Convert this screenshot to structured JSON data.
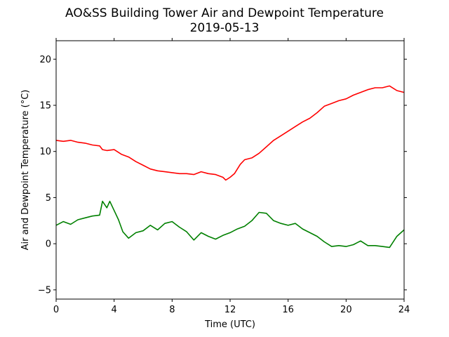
{
  "chart_data": {
    "type": "line",
    "title": "AO&SS Building Tower Air and Dewpoint Temperature",
    "subtitle": "2019-05-13",
    "xlabel": "Time (UTC)",
    "ylabel": "Air and Dewpoint Temperature (°C)",
    "xlim": [
      0,
      24
    ],
    "ylim": [
      -6,
      22
    ],
    "xticks": [
      0,
      4,
      8,
      12,
      16,
      20,
      24
    ],
    "yticks": [
      -5,
      0,
      5,
      10,
      15,
      20
    ],
    "grid": false,
    "series": [
      {
        "color": "#ff0000",
        "x": [
          0,
          0.5,
          1,
          1.5,
          2,
          2.5,
          3,
          3.2,
          3.5,
          4,
          4.5,
          5,
          5.5,
          6,
          6.5,
          7,
          7.5,
          8,
          8.5,
          9,
          9.5,
          10,
          10.5,
          11,
          11.5,
          11.7,
          12,
          12.3,
          12.7,
          13,
          13.5,
          14,
          14.5,
          15,
          15.5,
          16,
          16.5,
          17,
          17.5,
          18,
          18.5,
          19,
          19.5,
          20,
          20.5,
          21,
          21.5,
          22,
          22.5,
          23,
          23.5,
          24
        ],
        "y": [
          11.2,
          11.1,
          11.2,
          11.0,
          10.9,
          10.7,
          10.6,
          10.2,
          10.1,
          10.2,
          9.7,
          9.4,
          8.9,
          8.5,
          8.1,
          7.9,
          7.8,
          7.7,
          7.6,
          7.6,
          7.5,
          7.8,
          7.6,
          7.5,
          7.2,
          6.9,
          7.2,
          7.6,
          8.6,
          9.1,
          9.3,
          9.8,
          10.5,
          11.2,
          11.7,
          12.2,
          12.7,
          13.2,
          13.6,
          14.2,
          14.9,
          15.2,
          15.5,
          15.7,
          16.1,
          16.4,
          16.7,
          16.9,
          16.9,
          17.1,
          16.6,
          16.4
        ]
      },
      {
        "color": "#008000",
        "x": [
          0,
          0.5,
          1,
          1.5,
          2,
          2.5,
          3,
          3.2,
          3.5,
          3.7,
          4,
          4.3,
          4.6,
          5,
          5.5,
          6,
          6.5,
          7,
          7.5,
          8,
          8.5,
          9,
          9.5,
          10,
          10.5,
          11,
          11.5,
          12,
          12.5,
          13,
          13.5,
          14,
          14.5,
          15,
          15.5,
          16,
          16.5,
          17,
          17.5,
          18,
          18.5,
          19,
          19.5,
          20,
          20.5,
          21,
          21.5,
          22,
          22.5,
          23,
          23.5,
          24
        ],
        "y": [
          2.0,
          2.4,
          2.1,
          2.6,
          2.8,
          3.0,
          3.1,
          4.6,
          3.9,
          4.6,
          3.6,
          2.6,
          1.3,
          0.6,
          1.2,
          1.4,
          2.0,
          1.5,
          2.2,
          2.4,
          1.8,
          1.3,
          0.4,
          1.2,
          0.8,
          0.5,
          0.9,
          1.2,
          1.6,
          1.9,
          2.5,
          3.4,
          3.3,
          2.5,
          2.2,
          2.0,
          2.2,
          1.6,
          1.2,
          0.8,
          0.2,
          -0.3,
          -0.2,
          -0.3,
          -0.1,
          0.3,
          -0.2,
          -0.2,
          -0.3,
          -0.4,
          0.8,
          1.5
        ]
      }
    ]
  }
}
